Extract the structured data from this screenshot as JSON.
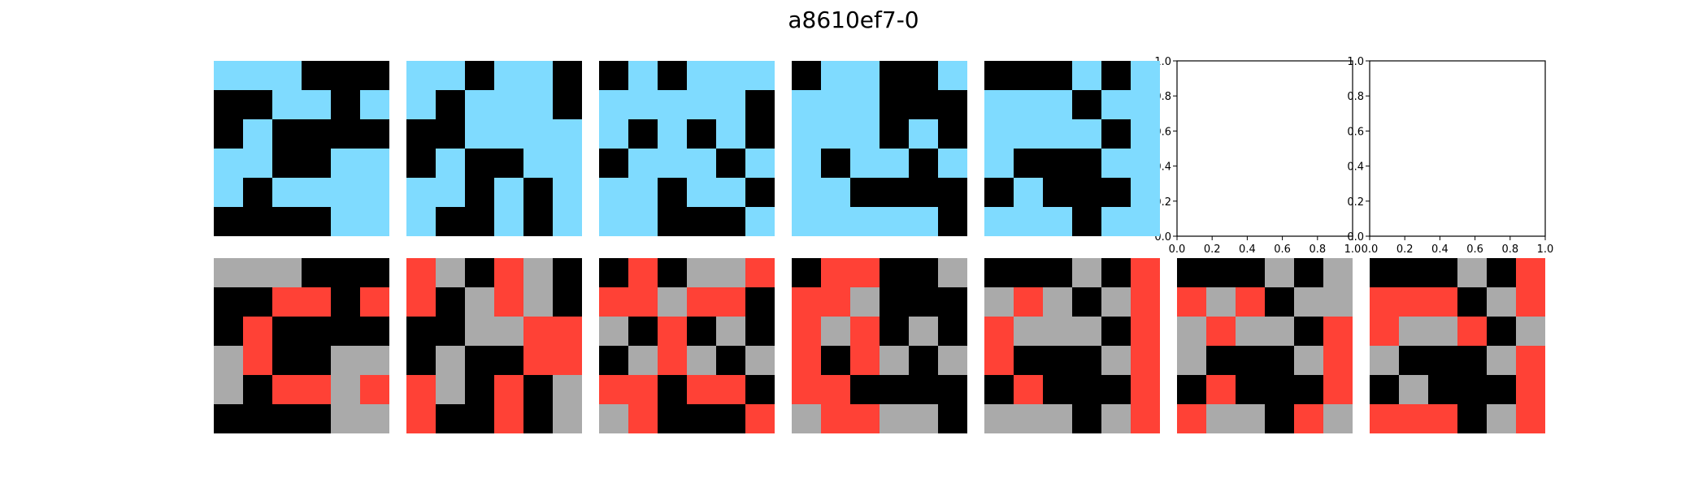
{
  "title": "a8610ef7-0",
  "palette": {
    "0": "#000000",
    "1": "#000000",
    "2": "#FF4136",
    "5": "#AAAAAA",
    "8": "#7FDBFF",
    "9": "#000000"
  },
  "top_row": [
    {
      "grid": [
        [
          8,
          8,
          8,
          0,
          0,
          0
        ],
        [
          0,
          0,
          8,
          8,
          0,
          8
        ],
        [
          0,
          8,
          0,
          0,
          0,
          0
        ],
        [
          8,
          8,
          0,
          0,
          8,
          8
        ],
        [
          8,
          0,
          8,
          8,
          8,
          8
        ],
        [
          0,
          0,
          0,
          0,
          8,
          8
        ]
      ]
    },
    {
      "grid": [
        [
          8,
          8,
          0,
          8,
          8,
          0
        ],
        [
          8,
          0,
          8,
          8,
          8,
          0
        ],
        [
          0,
          0,
          8,
          8,
          8,
          8
        ],
        [
          0,
          8,
          0,
          0,
          8,
          8
        ],
        [
          8,
          8,
          0,
          8,
          0,
          8
        ],
        [
          8,
          0,
          0,
          8,
          0,
          8
        ]
      ]
    },
    {
      "grid": [
        [
          0,
          8,
          0,
          8,
          8,
          8
        ],
        [
          8,
          8,
          8,
          8,
          8,
          0
        ],
        [
          8,
          0,
          8,
          0,
          8,
          0
        ],
        [
          0,
          8,
          8,
          8,
          0,
          8
        ],
        [
          8,
          8,
          0,
          8,
          8,
          0
        ],
        [
          8,
          8,
          0,
          0,
          0,
          8
        ]
      ]
    },
    {
      "grid": [
        [
          0,
          8,
          8,
          0,
          0,
          8
        ],
        [
          8,
          8,
          8,
          0,
          0,
          0
        ],
        [
          8,
          8,
          8,
          0,
          8,
          0
        ],
        [
          8,
          0,
          8,
          8,
          0,
          8
        ],
        [
          8,
          8,
          0,
          0,
          0,
          0
        ],
        [
          8,
          8,
          8,
          8,
          8,
          0
        ]
      ]
    },
    {
      "grid": [
        [
          0,
          0,
          0,
          8,
          0,
          8
        ],
        [
          8,
          8,
          8,
          0,
          8,
          8
        ],
        [
          8,
          8,
          8,
          8,
          0,
          8
        ],
        [
          8,
          0,
          0,
          0,
          8,
          8
        ],
        [
          0,
          8,
          0,
          0,
          0,
          8
        ],
        [
          8,
          8,
          8,
          0,
          8,
          8
        ]
      ]
    },
    {
      "empty": true
    },
    {
      "empty": true
    }
  ],
  "bottom_row": [
    {
      "grid": [
        [
          5,
          5,
          5,
          0,
          0,
          0
        ],
        [
          0,
          0,
          2,
          2,
          0,
          2
        ],
        [
          0,
          2,
          0,
          0,
          0,
          0
        ],
        [
          5,
          2,
          0,
          0,
          5,
          5
        ],
        [
          5,
          0,
          2,
          2,
          5,
          2
        ],
        [
          0,
          0,
          0,
          0,
          5,
          5
        ]
      ]
    },
    {
      "grid": [
        [
          2,
          5,
          0,
          2,
          5,
          0
        ],
        [
          2,
          0,
          5,
          2,
          5,
          0
        ],
        [
          0,
          0,
          5,
          5,
          2,
          2
        ],
        [
          0,
          5,
          0,
          0,
          2,
          2
        ],
        [
          2,
          5,
          0,
          2,
          0,
          5
        ],
        [
          2,
          0,
          0,
          2,
          0,
          5
        ]
      ]
    },
    {
      "grid": [
        [
          0,
          2,
          0,
          5,
          5,
          2
        ],
        [
          2,
          2,
          5,
          2,
          2,
          0
        ],
        [
          5,
          0,
          2,
          0,
          5,
          0
        ],
        [
          0,
          5,
          2,
          5,
          0,
          5
        ],
        [
          2,
          2,
          0,
          2,
          2,
          0
        ],
        [
          5,
          2,
          0,
          0,
          0,
          2
        ]
      ]
    },
    {
      "grid": [
        [
          0,
          2,
          2,
          0,
          0,
          5
        ],
        [
          2,
          2,
          5,
          0,
          0,
          0
        ],
        [
          2,
          5,
          2,
          0,
          5,
          0
        ],
        [
          2,
          0,
          2,
          5,
          0,
          5
        ],
        [
          2,
          2,
          0,
          0,
          0,
          0
        ],
        [
          5,
          2,
          2,
          5,
          5,
          0
        ]
      ]
    },
    {
      "grid": [
        [
          0,
          0,
          0,
          5,
          0,
          2
        ],
        [
          5,
          2,
          5,
          0,
          5,
          2
        ],
        [
          2,
          5,
          5,
          5,
          0,
          2
        ],
        [
          2,
          0,
          0,
          0,
          5,
          2
        ],
        [
          0,
          2,
          0,
          0,
          0,
          2
        ],
        [
          5,
          5,
          5,
          0,
          5,
          2
        ]
      ]
    },
    {
      "grid": [
        [
          0,
          0,
          0,
          5,
          0,
          5
        ],
        [
          2,
          5,
          2,
          0,
          5,
          5
        ],
        [
          5,
          2,
          5,
          5,
          0,
          2
        ],
        [
          5,
          0,
          0,
          0,
          5,
          2
        ],
        [
          0,
          2,
          0,
          0,
          0,
          2
        ],
        [
          2,
          5,
          5,
          0,
          2,
          5
        ]
      ]
    },
    {
      "grid": [
        [
          0,
          0,
          0,
          5,
          0,
          2
        ],
        [
          2,
          2,
          2,
          0,
          5,
          2
        ],
        [
          2,
          5,
          5,
          2,
          0,
          5
        ],
        [
          5,
          0,
          0,
          0,
          5,
          2
        ],
        [
          0,
          5,
          0,
          0,
          0,
          2
        ],
        [
          2,
          2,
          2,
          0,
          5,
          2
        ]
      ]
    }
  ],
  "empty_axes": {
    "xticks": [
      "0.0",
      "0.2",
      "0.4",
      "0.6",
      "0.8",
      "1.0"
    ],
    "yticks": [
      "0.0",
      "0.2",
      "0.4",
      "0.6",
      "0.8",
      "1.0"
    ]
  }
}
